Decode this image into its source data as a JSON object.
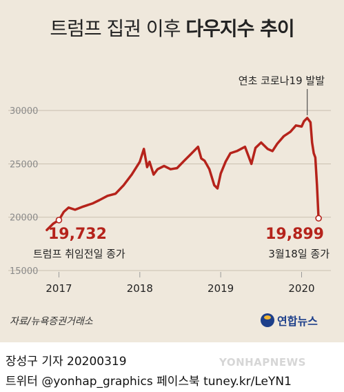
{
  "header": {
    "title_light": "트럼프 집권 이후",
    "title_bold": "다우지수 추이"
  },
  "chart_data": {
    "type": "line",
    "title": "트럼프 집권 이후 다우지수 추이",
    "xlabel": "",
    "ylabel": "",
    "x_ticks": [
      "2017",
      "2018",
      "2019",
      "2020"
    ],
    "y_ticks": [
      15000,
      20000,
      25000,
      30000
    ],
    "ylim": [
      15000,
      31500
    ],
    "grid": true,
    "line_color": "#b5231b",
    "series": [
      {
        "x": [
          2016.85,
          2016.93,
          2017.0,
          2017.06,
          2017.12,
          2017.2,
          2017.3,
          2017.42,
          2017.5,
          2017.6,
          2017.7,
          2017.8,
          2017.9,
          2018.0,
          2018.05,
          2018.09,
          2018.12,
          2018.17,
          2018.22,
          2018.3,
          2018.38,
          2018.46,
          2018.55,
          2018.63,
          2018.72,
          2018.76,
          2018.8,
          2018.86,
          2018.92,
          2018.96,
          2019.0,
          2019.06,
          2019.12,
          2019.2,
          2019.3,
          2019.38,
          2019.43,
          2019.5,
          2019.58,
          2019.64,
          2019.7,
          2019.78,
          2019.86,
          2019.93,
          2020.0,
          2020.03,
          2020.07,
          2020.11,
          2020.13,
          2020.15,
          2020.17,
          2020.19,
          2020.21
        ],
        "y": [
          18800,
          19400,
          19732,
          20500,
          20900,
          20700,
          21000,
          21300,
          21600,
          22000,
          22200,
          23000,
          24000,
          25200,
          26400,
          24700,
          25200,
          24000,
          24500,
          24800,
          24500,
          24600,
          25300,
          25900,
          26600,
          25500,
          25300,
          24500,
          23000,
          22700,
          24100,
          25200,
          26000,
          26200,
          26600,
          25000,
          26500,
          27000,
          26400,
          26200,
          26900,
          27600,
          28000,
          28600,
          28500,
          29000,
          29300,
          28900,
          27000,
          26000,
          25600,
          23000,
          19899
        ]
      }
    ],
    "annotations": [
      {
        "text": "연초 코로나19 발발"
      },
      {
        "value": "19,732",
        "label": "트럼프 취임전일 종가"
      },
      {
        "value": "19,899",
        "label": "3월18일 종가"
      }
    ]
  },
  "source": "자료/뉴욕증권거래소",
  "logo": "연합뉴스",
  "footer": {
    "credit": "장성구 기자  20200319",
    "sns": "트위터 @yonhap_graphics  페이스북 tuney.kr/LeYN1"
  },
  "watermark": "YONHAPNEWS"
}
